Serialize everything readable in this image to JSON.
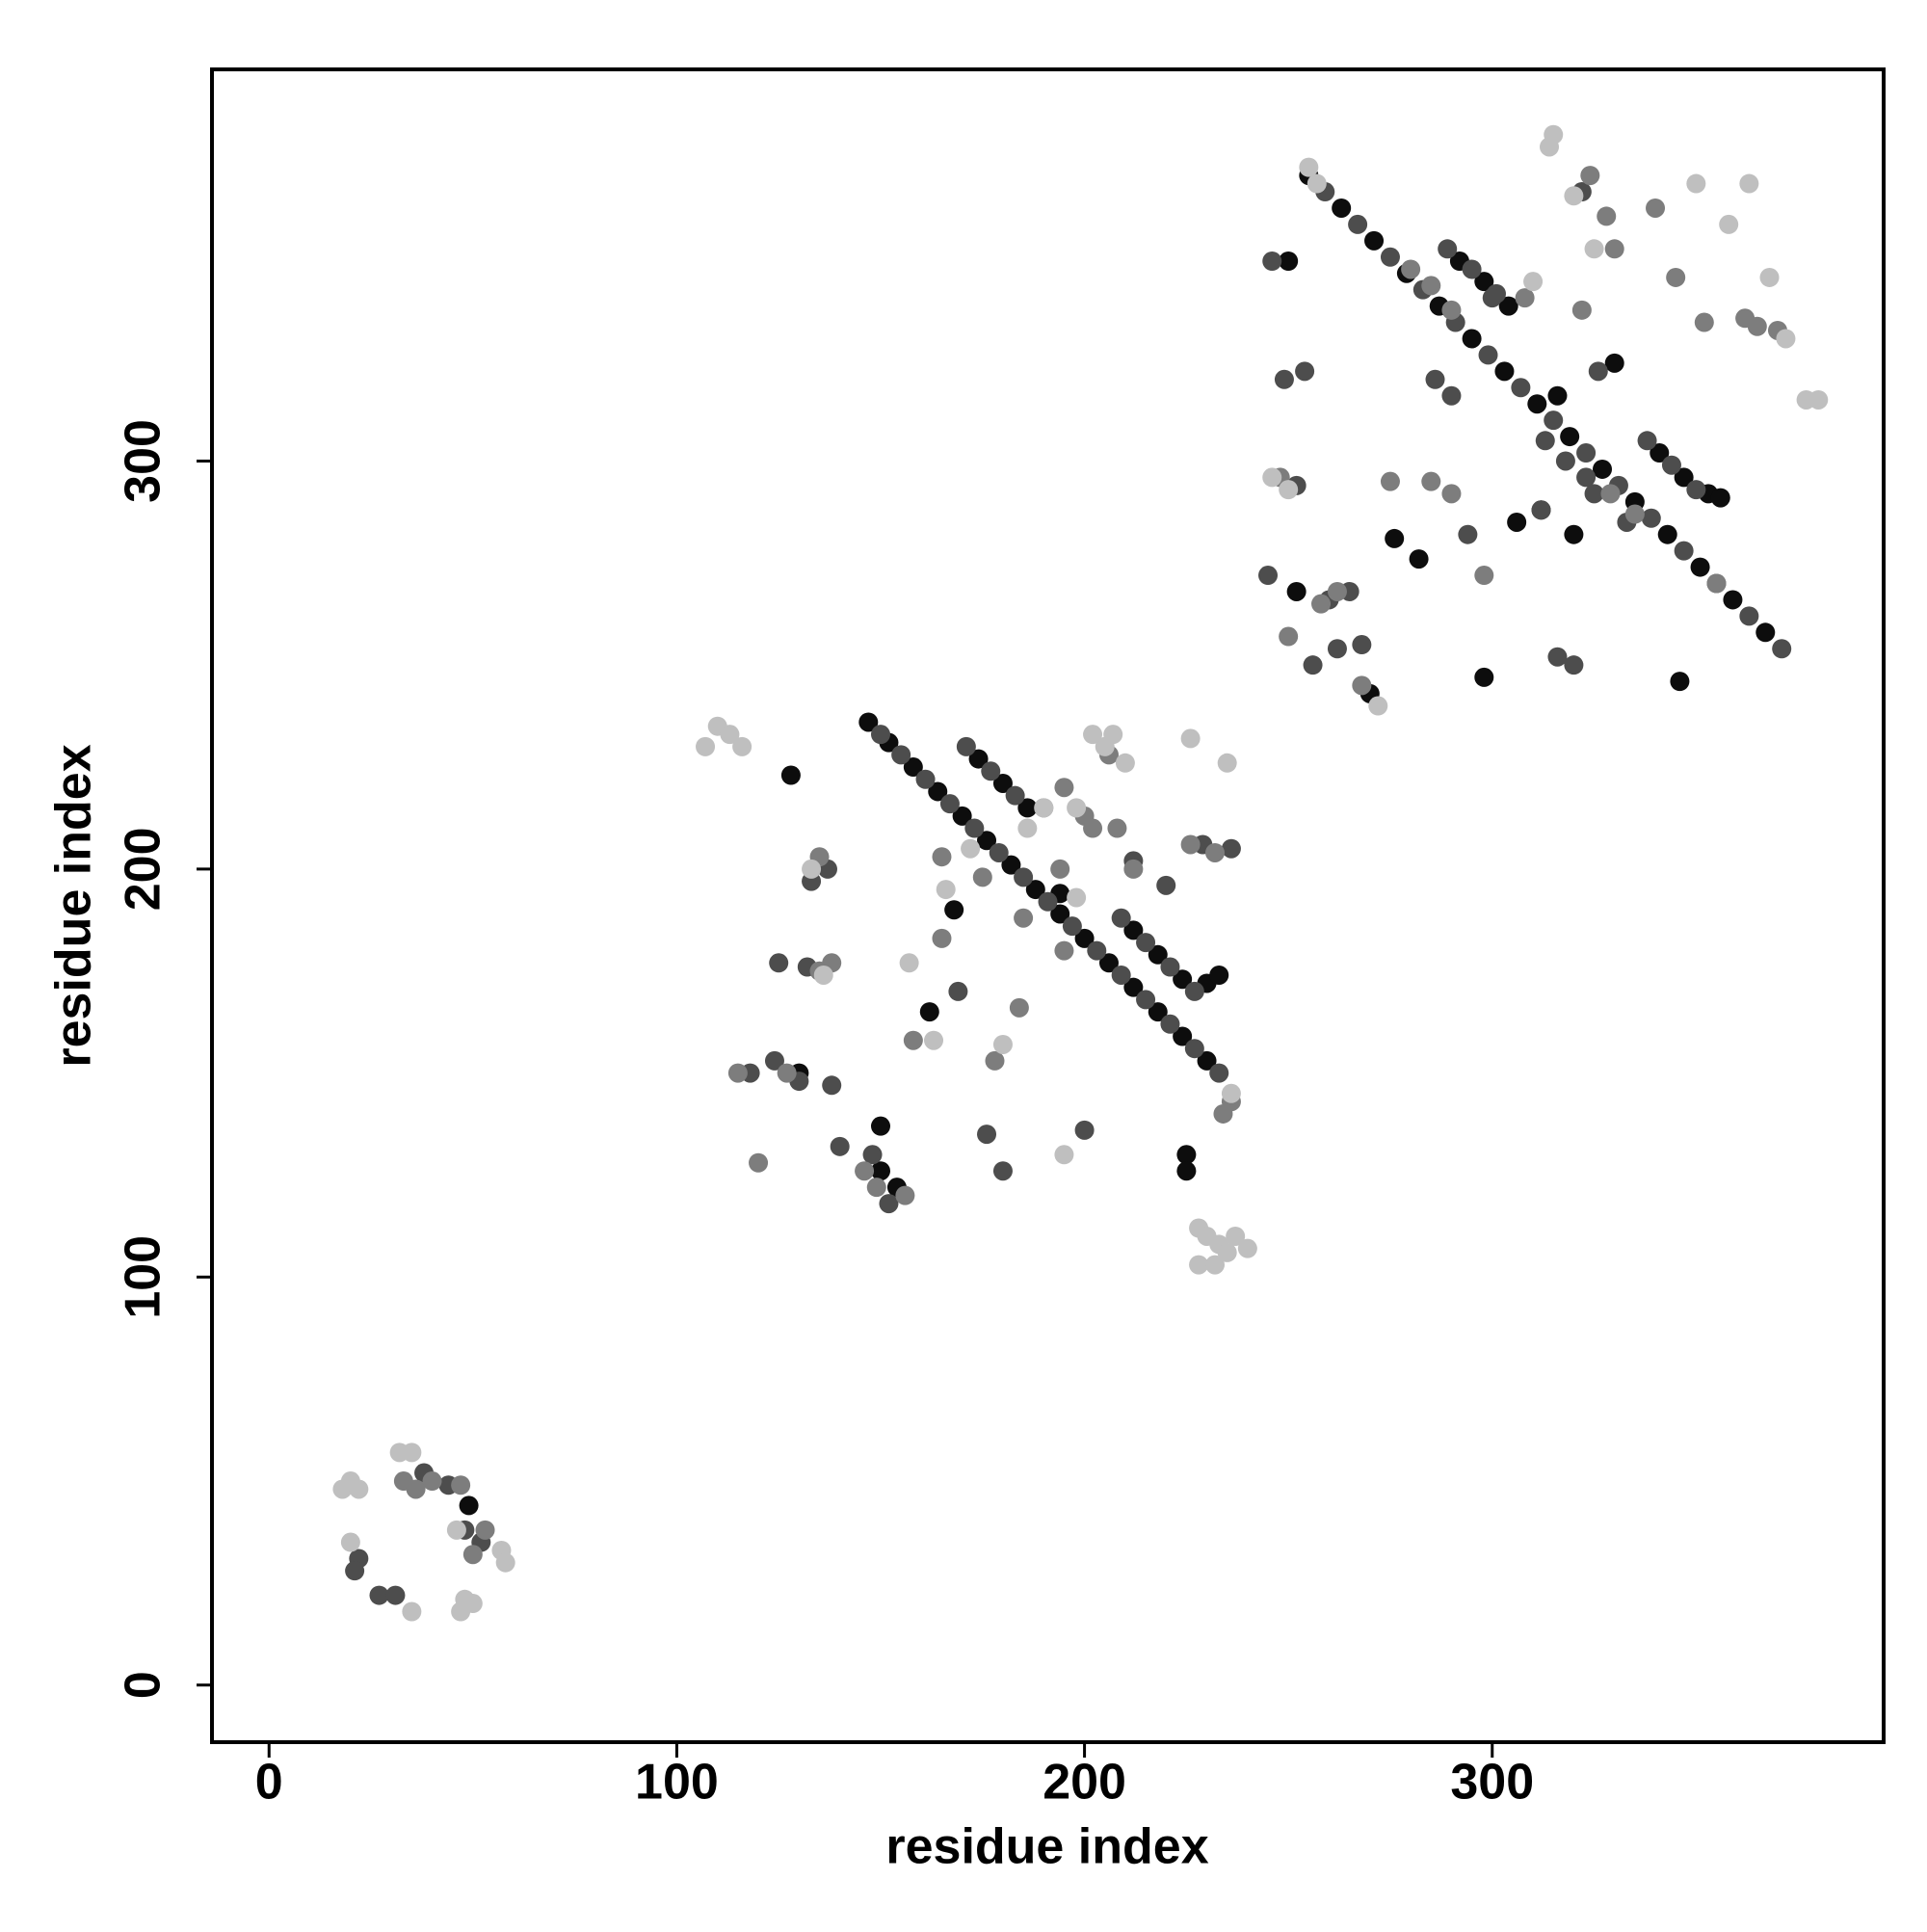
{
  "chart_data": {
    "type": "scatter",
    "x_label": "residue index",
    "y_label": "residue index",
    "xlim": [
      -14,
      396
    ],
    "ylim": [
      -14,
      396
    ],
    "xticks": [
      0,
      100,
      200,
      300
    ],
    "yticks": [
      0,
      100,
      200,
      300
    ],
    "grid": false,
    "series": [
      {
        "color": "#0d0d0d",
        "x": [
          147,
          152,
          158,
          164,
          170,
          176,
          182,
          188,
          194,
          200,
          206,
          212,
          218,
          224,
          230,
          174,
          180,
          186,
          212,
          218,
          224,
          230,
          233,
          255,
          263,
          271,
          279,
          287,
          295,
          303,
          311,
          319,
          327,
          335,
          343,
          351,
          359,
          367,
          292,
          298,
          304,
          341,
          347,
          353,
          356,
          49,
          128,
          130,
          150,
          150,
          154,
          162,
          168,
          194,
          225,
          225,
          250,
          252,
          270,
          276,
          282,
          306,
          312,
          330,
          346,
          298,
          320,
          316
        ],
        "y": [
          236,
          231,
          225,
          219,
          213,
          207,
          201,
          195,
          189,
          183,
          177,
          171,
          165,
          159,
          153,
          227,
          221,
          215,
          185,
          179,
          173,
          172,
          174,
          370,
          362,
          354,
          346,
          338,
          330,
          322,
          314,
          306,
          298,
          290,
          282,
          274,
          266,
          258,
          349,
          344,
          338,
          302,
          296,
          292,
          291,
          44,
          223,
          150,
          137,
          126,
          122,
          165,
          190,
          194,
          130,
          126,
          349,
          268,
          243,
          281,
          276,
          285,
          288,
          324,
          246,
          247,
          282,
          316
        ]
      },
      {
        "color": "#4d4d4d",
        "x": [
          150,
          155,
          161,
          167,
          173,
          179,
          185,
          191,
          197,
          203,
          209,
          215,
          221,
          227,
          233,
          171,
          177,
          183,
          209,
          215,
          221,
          227,
          259,
          267,
          275,
          283,
          291,
          299,
          307,
          315,
          323,
          331,
          339,
          347,
          355,
          363,
          371,
          289,
          295,
          301,
          338,
          344,
          350,
          313,
          318,
          323,
          22,
          27,
          31,
          38,
          44,
          48,
          52,
          21,
          133,
          137,
          125,
          132,
          118,
          124,
          130,
          138,
          140,
          148,
          152,
          169,
          176,
          180,
          200,
          212,
          220,
          229,
          236,
          246,
          249,
          254,
          245,
          252,
          260,
          256,
          265,
          268,
          262,
          286,
          290,
          294,
          300,
          322,
          326,
          333,
          316,
          320,
          312,
          325
        ],
        "y": [
          233,
          228,
          222,
          216,
          210,
          204,
          198,
          192,
          186,
          180,
          174,
          168,
          162,
          156,
          150,
          230,
          224,
          218,
          188,
          182,
          176,
          170,
          366,
          358,
          350,
          342,
          334,
          326,
          318,
          310,
          302,
          294,
          286,
          278,
          270,
          262,
          254,
          352,
          347,
          341,
          305,
          299,
          293,
          305,
          300,
          296,
          31,
          22,
          22,
          52,
          49,
          38,
          35,
          28,
          197,
          200,
          177,
          176,
          150,
          153,
          148,
          147,
          132,
          130,
          118,
          170,
          135,
          126,
          136,
          202,
          196,
          206,
          205,
          349,
          320,
          322,
          272,
          294,
          266,
          250,
          268,
          255,
          254,
          320,
          316,
          282,
          340,
          366,
          322,
          285,
          252,
          250,
          288,
          292
        ]
      },
      {
        "color": "#7d7d7d",
        "x": [
          165,
          175,
          185,
          195,
          280,
          285,
          290,
          329,
          335,
          36,
          40,
          47,
          50,
          53,
          33,
          135,
          138,
          127,
          135,
          120,
          115,
          146,
          149,
          156,
          158,
          165,
          178,
          184,
          194,
          200,
          206,
          212,
          190,
          195,
          202,
          208,
          232,
          236,
          226,
          234,
          248,
          250,
          258,
          262,
          268,
          285,
          290,
          298,
          324,
          328,
          330,
          352,
          362,
          365,
          370,
          355,
          340,
          308,
          322,
          275,
          345
        ],
        "y": [
          203,
          198,
          188,
          180,
          347,
          343,
          337,
          292,
          287,
          48,
          50,
          49,
          32,
          38,
          50,
          203,
          177,
          150,
          175,
          128,
          150,
          126,
          122,
          120,
          158,
          183,
          153,
          166,
          200,
          213,
          228,
          200,
          215,
          220,
          210,
          210,
          204,
          143,
          206,
          140,
          296,
          257,
          265,
          268,
          245,
          295,
          292,
          272,
          370,
          360,
          352,
          334,
          335,
          333,
          332,
          270,
          362,
          340,
          337,
          295,
          345
        ]
      },
      {
        "color": "#bfbfbf",
        "x": [
          18,
          20,
          22,
          32,
          35,
          57,
          58,
          20,
          35,
          47,
          48,
          50,
          46,
          107,
          110,
          113,
          116,
          133,
          136,
          157,
          163,
          166,
          172,
          236,
          228,
          230,
          233,
          235,
          237,
          240,
          228,
          232,
          205,
          207,
          210,
          226,
          235,
          246,
          250,
          255,
          257,
          272,
          315,
          314,
          320,
          325,
          350,
          358,
          363,
          368,
          372,
          377,
          380,
          195,
          190,
          186,
          198,
          180,
          202,
          198,
          310
        ],
        "y": [
          48,
          50,
          48,
          57,
          57,
          33,
          30,
          35,
          18,
          18,
          21,
          20,
          38,
          230,
          235,
          233,
          230,
          200,
          174,
          177,
          158,
          195,
          205,
          145,
          112,
          110,
          108,
          106,
          110,
          107,
          103,
          103,
          230,
          233,
          226,
          232,
          226,
          296,
          293,
          372,
          368,
          240,
          380,
          377,
          365,
          352,
          368,
          358,
          368,
          345,
          330,
          315,
          315,
          130,
          215,
          210,
          193,
          157,
          233,
          215,
          344
        ]
      }
    ]
  }
}
